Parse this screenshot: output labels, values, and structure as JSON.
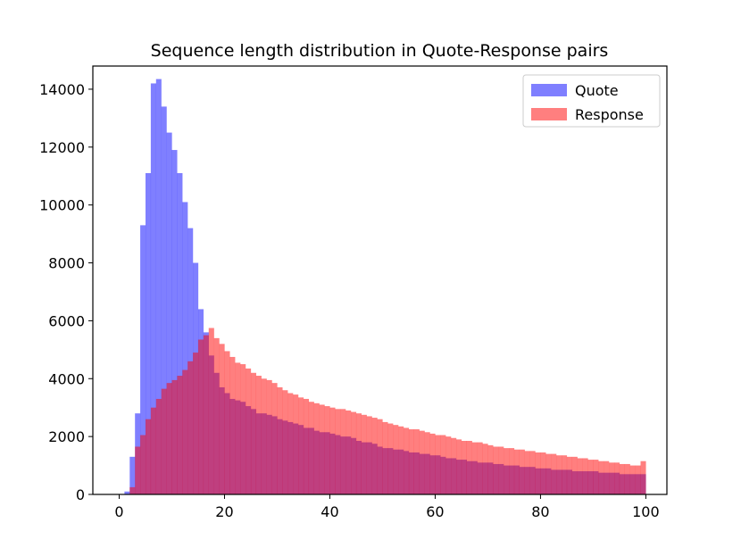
{
  "chart_data": {
    "type": "histogram",
    "title": "Sequence length distribution in Quote-Response pairs",
    "xlabel": "",
    "ylabel": "",
    "xlim": [
      -5,
      104
    ],
    "ylim": [
      0,
      14800
    ],
    "xticks": [
      0,
      20,
      40,
      60,
      80,
      100
    ],
    "yticks": [
      0,
      2000,
      4000,
      6000,
      8000,
      10000,
      12000,
      14000
    ],
    "bin_start": 0,
    "bin_width": 1,
    "grid": false,
    "legend": {
      "placement": "top-right"
    },
    "series": [
      {
        "name": "Quote",
        "color": "#0000ff",
        "alpha": 0.5,
        "values": [
          0,
          100,
          1300,
          2800,
          9300,
          11100,
          14200,
          14350,
          13400,
          12500,
          11900,
          11100,
          10100,
          9200,
          8000,
          6400,
          5600,
          4800,
          4200,
          3700,
          3500,
          3300,
          3250,
          3200,
          3050,
          2950,
          2800,
          2800,
          2750,
          2700,
          2600,
          2550,
          2500,
          2450,
          2400,
          2300,
          2300,
          2200,
          2150,
          2150,
          2100,
          2050,
          2000,
          2000,
          1950,
          1850,
          1800,
          1800,
          1750,
          1650,
          1600,
          1600,
          1550,
          1550,
          1500,
          1450,
          1450,
          1400,
          1400,
          1350,
          1350,
          1300,
          1250,
          1250,
          1200,
          1200,
          1150,
          1150,
          1100,
          1100,
          1100,
          1050,
          1050,
          1000,
          1000,
          1000,
          950,
          950,
          950,
          900,
          900,
          900,
          850,
          850,
          850,
          850,
          800,
          800,
          800,
          800,
          800,
          750,
          750,
          750,
          750,
          700,
          700,
          700,
          700,
          700
        ]
      },
      {
        "name": "Response",
        "color": "#ff0000",
        "alpha": 0.5,
        "values": [
          0,
          0,
          250,
          1650,
          2050,
          2600,
          3000,
          3300,
          3650,
          3850,
          3950,
          4100,
          4300,
          4600,
          4900,
          5350,
          5500,
          5750,
          5400,
          5200,
          4950,
          4750,
          4550,
          4500,
          4350,
          4200,
          4100,
          4000,
          3950,
          3850,
          3700,
          3600,
          3500,
          3450,
          3350,
          3300,
          3200,
          3150,
          3100,
          3050,
          3000,
          2950,
          2950,
          2900,
          2850,
          2800,
          2750,
          2700,
          2650,
          2600,
          2500,
          2450,
          2400,
          2350,
          2300,
          2250,
          2250,
          2200,
          2150,
          2100,
          2050,
          2050,
          2000,
          1950,
          1900,
          1850,
          1850,
          1800,
          1800,
          1750,
          1700,
          1650,
          1650,
          1600,
          1600,
          1550,
          1550,
          1500,
          1500,
          1450,
          1450,
          1400,
          1400,
          1350,
          1350,
          1300,
          1300,
          1250,
          1250,
          1200,
          1200,
          1150,
          1150,
          1100,
          1100,
          1050,
          1050,
          1000,
          1000,
          1150
        ]
      }
    ]
  },
  "colors": {
    "quote": "#0000ff",
    "response": "#ff0000",
    "axes": "#000000",
    "legend_border": "#cccccc"
  }
}
